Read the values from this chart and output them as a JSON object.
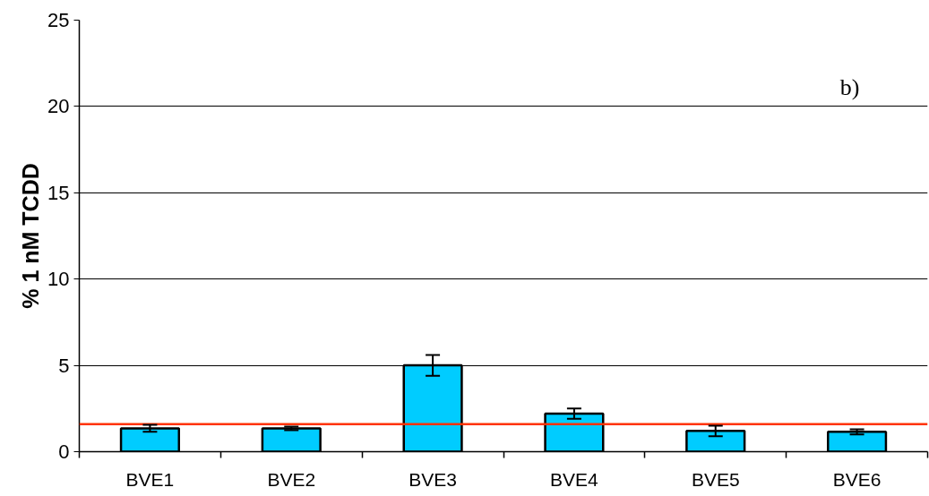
{
  "chart_data": {
    "type": "bar",
    "ylabel": "% 1 nM TCDD",
    "annotations": [
      "b)"
    ],
    "categories": [
      "BVE1",
      "BVE2",
      "BVE3",
      "BVE4",
      "BVE5",
      "BVE6"
    ],
    "values": [
      1.35,
      1.35,
      5.0,
      2.2,
      1.2,
      1.15
    ],
    "errors": [
      0.2,
      0.1,
      0.6,
      0.3,
      0.3,
      0.15
    ],
    "color": "#00ccff",
    "ylim": [
      0,
      25
    ],
    "yticks": [
      0,
      5,
      10,
      15,
      20,
      25
    ],
    "grid": "y",
    "ref_lines": [
      {
        "axis": "y",
        "value": 1.6,
        "color": "#ff3300"
      }
    ]
  }
}
